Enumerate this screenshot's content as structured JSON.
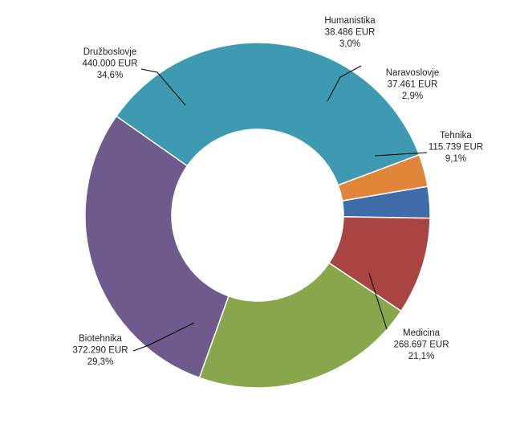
{
  "chart_data": {
    "type": "pie",
    "variant": "donut",
    "unit": "EUR",
    "categories": [
      "Humanistika",
      "Naravoslovje",
      "Tehnika",
      "Medicina",
      "Biotehnika",
      "Družboslovje"
    ],
    "values": [
      38486,
      37461,
      115739,
      268697,
      372290,
      440000
    ],
    "value_labels": [
      "38.486 EUR",
      "37.461 EUR",
      "115.739 EUR",
      "268.697 EUR",
      "372.290 EUR",
      "440.000 EUR"
    ],
    "percent_labels": [
      "3,0%",
      "2,9%",
      "9,1%",
      "21,1%",
      "29,3%",
      "34,6%"
    ],
    "colors": [
      "#E0853A",
      "#3F6BA8",
      "#A94442",
      "#88A64B",
      "#6F5A8E",
      "#3E9AB0"
    ],
    "legend": "none",
    "data_labels": "outside with leader lines"
  }
}
